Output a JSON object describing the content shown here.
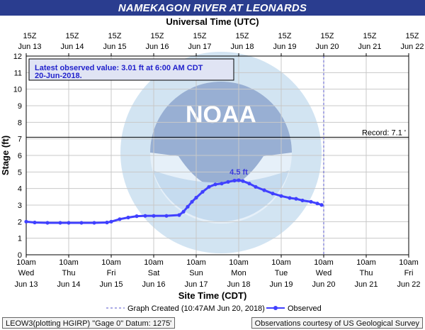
{
  "chart_data": {
    "type": "line",
    "title": "NAMEKAGON RIVER AT LEONARDS",
    "top_axis_title": "Universal Time (UTC)",
    "xlabel": "Site Time (CDT)",
    "ylabel": "Stage (ft)",
    "ylim": [
      0,
      12
    ],
    "yticks": [
      0,
      1,
      2,
      3,
      4,
      5,
      6,
      7,
      8,
      9,
      10,
      11,
      12
    ],
    "x_domain_days": [
      13,
      22
    ],
    "top_ticks": [
      {
        "hour": "15Z",
        "date": "Jun 13"
      },
      {
        "hour": "15Z",
        "date": "Jun 14"
      },
      {
        "hour": "15Z",
        "date": "Jun 15"
      },
      {
        "hour": "15Z",
        "date": "Jun 16"
      },
      {
        "hour": "15Z",
        "date": "Jun 17"
      },
      {
        "hour": "15Z",
        "date": "Jun 18"
      },
      {
        "hour": "15Z",
        "date": "Jun 19"
      },
      {
        "hour": "15Z",
        "date": "Jun 20"
      },
      {
        "hour": "15Z",
        "date": "Jun 21"
      },
      {
        "hour": "15Z",
        "date": "Jun 22"
      }
    ],
    "bottom_ticks": [
      {
        "time": "10am",
        "day": "Wed",
        "date": "Jun 13"
      },
      {
        "time": "10am",
        "day": "Thu",
        "date": "Jun 14"
      },
      {
        "time": "10am",
        "day": "Fri",
        "date": "Jun 15"
      },
      {
        "time": "10am",
        "day": "Sat",
        "date": "Jun 16"
      },
      {
        "time": "10am",
        "day": "Sun",
        "date": "Jun 17"
      },
      {
        "time": "10am",
        "day": "Mon",
        "date": "Jun 18"
      },
      {
        "time": "10am",
        "day": "Tue",
        "date": "Jun 19"
      },
      {
        "time": "10am",
        "day": "Wed",
        "date": "Jun 20"
      },
      {
        "time": "10am",
        "day": "Thu",
        "date": "Jun 21"
      },
      {
        "time": "10am",
        "day": "Fri",
        "date": "Jun 22"
      }
    ],
    "record": {
      "value": 7.1,
      "label": "Record: 7.1 '"
    },
    "graph_created_day": 20.0,
    "latest_box": "Latest observed value: 3.01  ft at 6:00 AM CDT\n20-Jun-2018.",
    "peak": {
      "x": 18.0,
      "value": 4.5,
      "label": "4.5 ft"
    },
    "legend": {
      "created": "Graph Created (10:47AM Jun 20, 2018)",
      "observed": "Observed"
    },
    "series": [
      {
        "name": "Observed",
        "x": [
          13.0,
          13.2,
          13.5,
          13.8,
          14.0,
          14.3,
          14.6,
          14.9,
          15.0,
          15.2,
          15.4,
          15.6,
          15.8,
          16.0,
          16.3,
          16.6,
          16.7,
          16.8,
          16.9,
          17.0,
          17.15,
          17.3,
          17.45,
          17.6,
          17.75,
          17.9,
          18.0,
          18.1,
          18.25,
          18.4,
          18.6,
          18.8,
          19.0,
          19.2,
          19.35,
          19.5,
          19.7,
          19.85,
          19.95
        ],
        "values": [
          2.0,
          1.95,
          1.93,
          1.93,
          1.93,
          1.93,
          1.93,
          1.95,
          2.0,
          2.15,
          2.25,
          2.33,
          2.35,
          2.35,
          2.35,
          2.4,
          2.6,
          2.9,
          3.2,
          3.45,
          3.8,
          4.1,
          4.25,
          4.3,
          4.4,
          4.48,
          4.5,
          4.45,
          4.3,
          4.1,
          3.9,
          3.7,
          3.55,
          3.43,
          3.38,
          3.28,
          3.2,
          3.1,
          3.01
        ]
      }
    ],
    "colors": {
      "title_bar": "#2a3d8f",
      "series": "#4040ff",
      "record": "#000000",
      "grid": "#c8c8c8",
      "now_line": "#5555cc",
      "box_bg": "#e0e4f4",
      "peak_text": "#3a3adc"
    }
  },
  "footer": {
    "left": "LEOW3(plotting HGIRP) \"Gage 0\" Datum: 1275'",
    "right": "Observations courtesy of US Geological Survey"
  },
  "watermark": "NOAA"
}
